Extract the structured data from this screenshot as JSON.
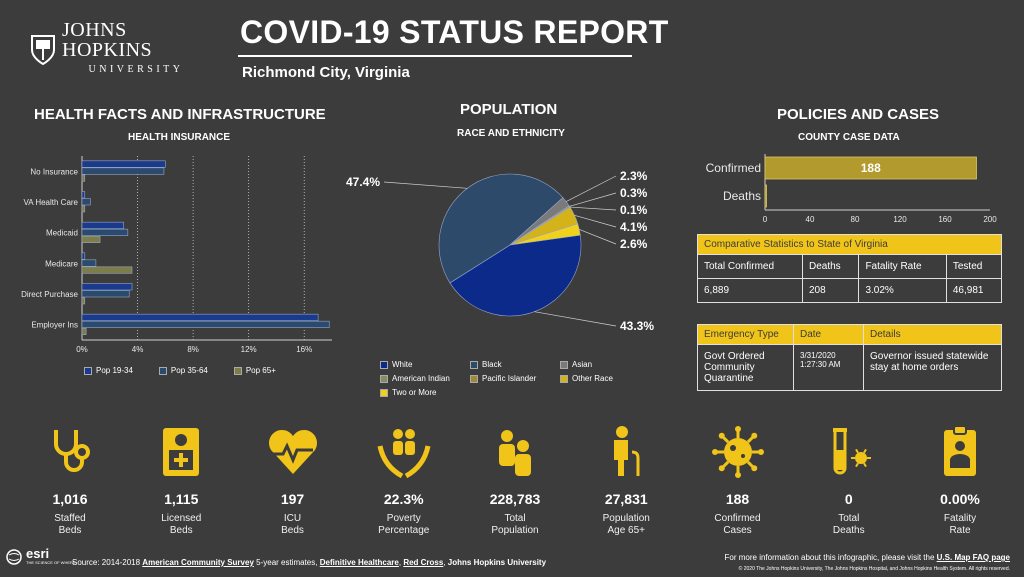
{
  "header": {
    "logo_name": "JOHNS HOPKINS",
    "logo_sub": "UNIVERSITY",
    "title": "COVID-19 STATUS REPORT",
    "location": "Richmond City, Virginia"
  },
  "health": {
    "heading": "HEALTH FACTS AND INFRASTRUCTURE",
    "subheading": "HEALTH INSURANCE",
    "chart_data": {
      "type": "bar",
      "orientation": "horizontal",
      "categories": [
        "No Insurance",
        "VA Health Care",
        "Medicaid",
        "Medicare",
        "Direct Purchase",
        "Employer Ins"
      ],
      "series": [
        {
          "name": "Pop 19-34",
          "color": "#1a3a8c",
          "values": [
            6.0,
            0.2,
            3.0,
            0.2,
            3.6,
            17.0
          ]
        },
        {
          "name": "Pop 35-64",
          "color": "#2a4a6e",
          "values": [
            5.9,
            0.6,
            3.3,
            1.0,
            3.4,
            17.8
          ]
        },
        {
          "name": "Pop 65+",
          "color": "#7d7d4a",
          "values": [
            0.2,
            0.2,
            1.3,
            3.6,
            0.2,
            0.3
          ]
        }
      ],
      "xlim": [
        0,
        18
      ],
      "xticks": [
        "0%",
        "4%",
        "8%",
        "12%",
        "16%"
      ],
      "legend_position": "bottom"
    }
  },
  "population": {
    "heading": "POPULATION",
    "subheading": "RACE AND ETHNICITY",
    "chart_data": {
      "type": "pie",
      "labels": [
        "White",
        "Black",
        "Asian",
        "American Indian",
        "Pacific Islander",
        "Other Race",
        "Two or More"
      ],
      "values": [
        43.3,
        47.4,
        2.3,
        0.3,
        0.1,
        4.1,
        2.6
      ],
      "value_labels": [
        "43.3%",
        "47.4%",
        "2.3%",
        "0.3%",
        "0.1%",
        "4.1%",
        "2.6%"
      ],
      "colors": [
        "#0b2a8a",
        "#2d4a6a",
        "#7a7a7a",
        "#8a8a62",
        "#a08a3a",
        "#d4b21a",
        "#f0d21c"
      ],
      "legend_position": "bottom"
    }
  },
  "policies": {
    "heading": "POLICIES AND CASES",
    "subheading": "COUNTY CASE DATA",
    "chart_data": {
      "type": "bar",
      "orientation": "horizontal",
      "categories": [
        "Confirmed",
        "Deaths"
      ],
      "values": [
        188,
        0
      ],
      "value_labels": [
        "188",
        ""
      ],
      "xlim": [
        0,
        200
      ],
      "xticks": [
        "0",
        "40",
        "80",
        "120",
        "160",
        "200"
      ],
      "color": "#b39a2e"
    },
    "comparative": {
      "title": "Comparative Statistics to State of Virginia",
      "headers": [
        "Total Confirmed",
        "Deaths",
        "Fatality Rate",
        "Tested"
      ],
      "values": [
        "6,889",
        "208",
        "3.02%",
        "46,981"
      ]
    },
    "emergency": {
      "headers": [
        "Emergency Type",
        "Date",
        "Details"
      ],
      "type": "Govt Ordered Community Quarantine",
      "date": "3/31/2020 1:27:30 AM",
      "details": "Governor issued statewide stay at home orders"
    }
  },
  "stats": [
    {
      "icon": "stethoscope-icon",
      "value": "1,016",
      "label1": "Staffed",
      "label2": "Beds"
    },
    {
      "icon": "medical-badge-icon",
      "value": "1,115",
      "label1": "Licensed",
      "label2": "Beds"
    },
    {
      "icon": "heart-pulse-icon",
      "value": "197",
      "label1": "ICU",
      "label2": "Beds"
    },
    {
      "icon": "hands-people-icon",
      "value": "22.3%",
      "label1": "Poverty",
      "label2": "Percentage"
    },
    {
      "icon": "family-icon",
      "value": "228,783",
      "label1": "Total",
      "label2": "Population"
    },
    {
      "icon": "elderly-icon",
      "value": "27,831",
      "label1": "Population",
      "label2": "Age 65+"
    },
    {
      "icon": "virus-icon",
      "value": "188",
      "label1": "Confirmed",
      "label2": "Cases"
    },
    {
      "icon": "test-tube-icon",
      "value": "0",
      "label1": "Total",
      "label2": "Deaths"
    },
    {
      "icon": "clipboard-icon",
      "value": "0.00%",
      "label1": "Fatality",
      "label2": "Rate"
    }
  ],
  "footer": {
    "esri": "esri",
    "esri_tag": "THE SCIENCE OF WHERE",
    "source_prefix": "Source: 2014-2018",
    "source_acs": "American Community Survey",
    "source_mid": "5-year estimates,",
    "source_dh": "Definitive Healthcare",
    "source_rc": "Red Cross",
    "source_jhu": "Johns Hopkins University",
    "more_info": "For more information about this infographic, please visit the",
    "faq_link": "U.S. Map FAQ page",
    "copyright": "© 2020 The Johns Hopkins University, The Johns Hopkins Hospital, and Johns Hopkins Health System. All rights reserved."
  },
  "colors": {
    "background": "#3c3c3c",
    "accent": "#f0c419"
  }
}
